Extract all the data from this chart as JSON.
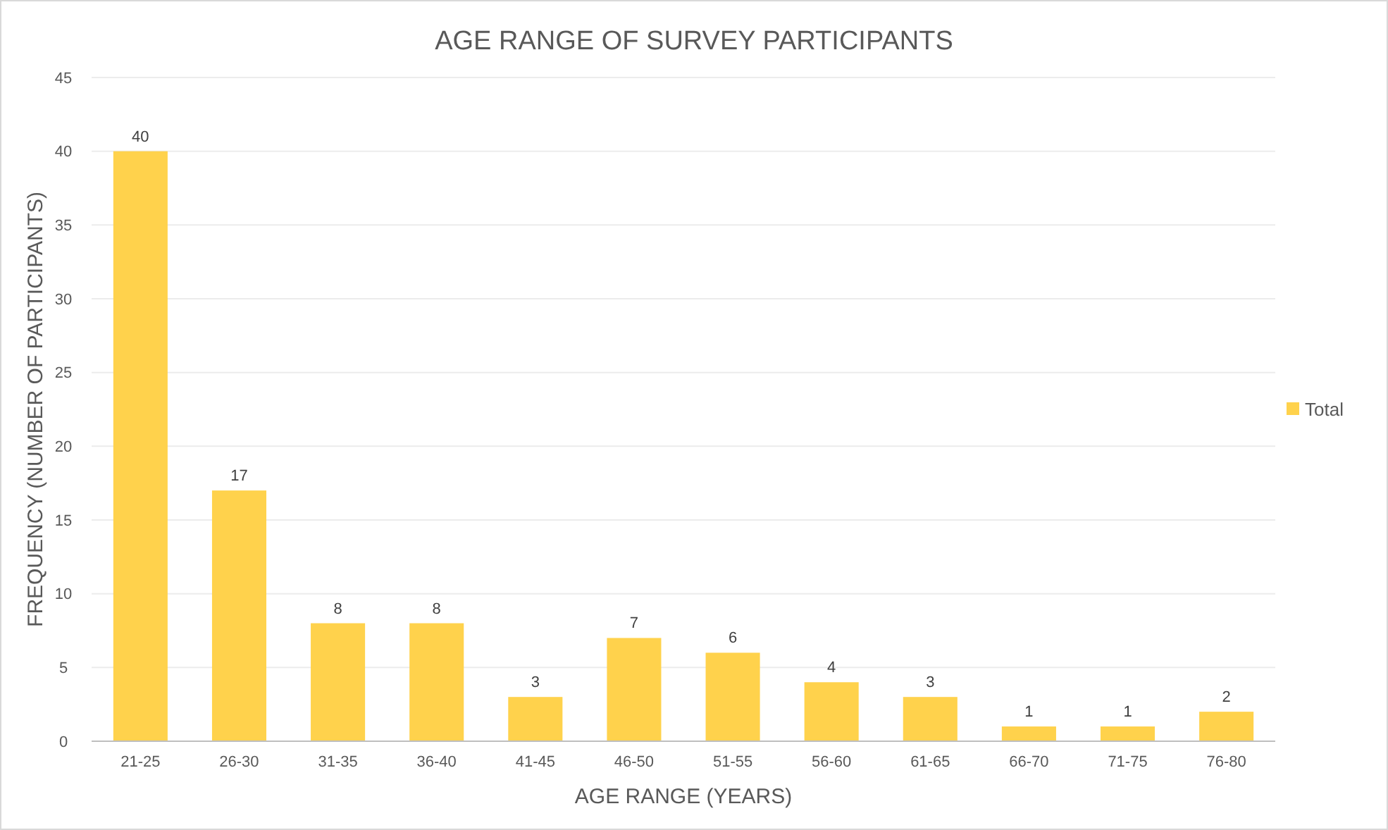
{
  "chart_data": {
    "type": "bar",
    "title": "AGE RANGE OF SURVEY PARTICIPANTS",
    "xlabel": "AGE RANGE (YEARS)",
    "ylabel": "FREQUENCY (NUMBER OF PARTICIPANTS)",
    "categories": [
      "21-25",
      "26-30",
      "31-35",
      "36-40",
      "41-45",
      "46-50",
      "51-55",
      "56-60",
      "61-65",
      "66-70",
      "71-75",
      "76-80"
    ],
    "series": [
      {
        "name": "Total",
        "color": "#ffd24c",
        "values": [
          40,
          17,
          8,
          8,
          3,
          7,
          6,
          4,
          3,
          1,
          1,
          2
        ]
      }
    ],
    "ylim": [
      0,
      45
    ],
    "yticks": [
      0,
      5,
      10,
      15,
      20,
      25,
      30,
      35,
      40,
      45
    ],
    "grid": "y",
    "legend": "right",
    "data_labels": true
  }
}
